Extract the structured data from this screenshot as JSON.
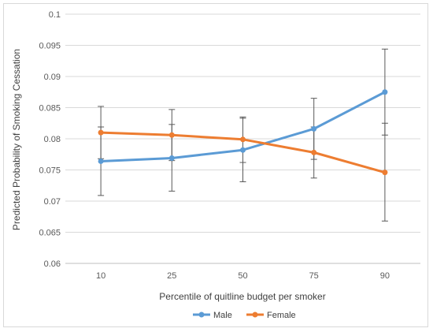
{
  "chart_data": {
    "type": "line",
    "title": "",
    "xlabel": "Percentile of quitline budget per smoker",
    "ylabel": "Predicted Probability of Smoking Cessation",
    "categories": [
      "10",
      "25",
      "50",
      "75",
      "90"
    ],
    "ylim": [
      0.06,
      0.1
    ],
    "yticks": [
      "0.06",
      "0.065",
      "0.07",
      "0.075",
      "0.08",
      "0.085",
      "0.09",
      "0.095",
      "0.1"
    ],
    "grid": true,
    "legend_position": "bottom",
    "series": [
      {
        "name": "Male",
        "color": "#5b9bd5",
        "values": [
          0.0764,
          0.0769,
          0.0782,
          0.0816,
          0.0875
        ],
        "error_low": [
          0.0709,
          0.0716,
          0.0731,
          0.0767,
          0.0806
        ],
        "error_high": [
          0.0819,
          0.0823,
          0.0833,
          0.0865,
          0.0944
        ]
      },
      {
        "name": "Female",
        "color": "#ed7d31",
        "values": [
          0.081,
          0.0806,
          0.0799,
          0.0778,
          0.0746
        ],
        "error_low": [
          0.0768,
          0.0765,
          0.0762,
          0.0737,
          0.0668
        ],
        "error_high": [
          0.0852,
          0.0847,
          0.0835,
          0.0819,
          0.0825
        ]
      }
    ]
  }
}
